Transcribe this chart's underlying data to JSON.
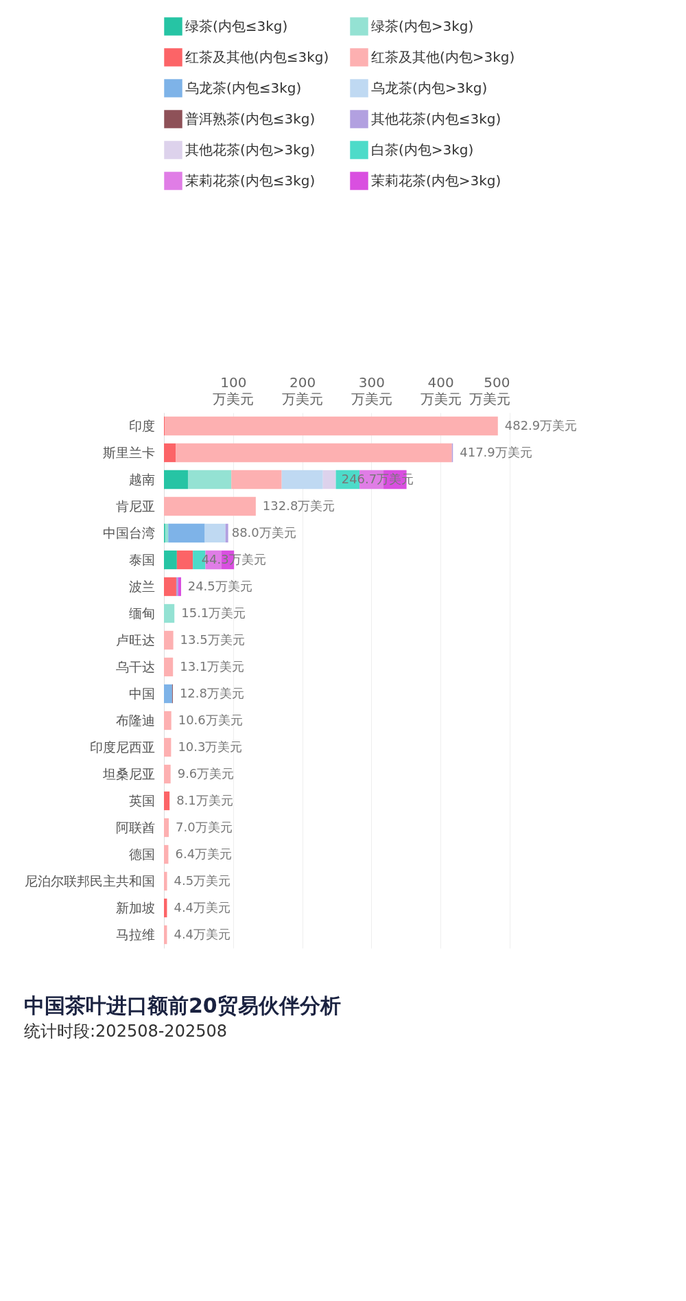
{
  "chart_data": {
    "type": "bar",
    "orientation": "horizontal",
    "stacked": true,
    "title": "中国茶叶进口额前20贸易伙伴分析",
    "subtitle": "统计时段:202508-202508",
    "categories": [
      "印度",
      "斯里兰卡",
      "越南",
      "肯尼亚",
      "中国台湾",
      "泰国",
      "波兰",
      "缅甸",
      "卢旺达",
      "乌干达",
      "中国",
      "布隆迪",
      "印度尼西亚",
      "坦桑尼亚",
      "英国",
      "阿联酋",
      "德国",
      "尼泊尔联邦民主共和国",
      "新加坡",
      "马拉维"
    ],
    "series": [
      {
        "name": "绿茶(内包≤3kg)",
        "color": "#26c4a4",
        "values": [
          null,
          null,
          34.7,
          null,
          1.8,
          18.7,
          null,
          null,
          null,
          null,
          null,
          null,
          null,
          null,
          null,
          null,
          null,
          null,
          null,
          null
        ]
      },
      {
        "name": "绿茶(内包>3kg)",
        "color": "#94e2d3",
        "values": [
          null,
          null,
          62.7,
          null,
          4.4,
          null,
          null,
          15.1,
          null,
          null,
          null,
          null,
          null,
          null,
          null,
          null,
          null,
          null,
          null,
          null
        ]
      },
      {
        "name": "红茶及其他(内包≤3kg)",
        "color": "#fc6467",
        "values": [
          1.0,
          17.3,
          null,
          null,
          null,
          23.1,
          17.8,
          null,
          null,
          null,
          null,
          null,
          null,
          null,
          8.1,
          null,
          null,
          null,
          4.4,
          null
        ]
      },
      {
        "name": "红茶及其他(内包>3kg)",
        "color": "#fdb0b1",
        "values": [
          481.9,
          399.1,
          72.9,
          132.8,
          null,
          null,
          null,
          null,
          13.5,
          13.1,
          null,
          10.6,
          10.3,
          9.6,
          null,
          7.0,
          6.4,
          4.5,
          null,
          4.4
        ]
      },
      {
        "name": "乌龙茶(内包≤3kg)",
        "color": "#7eb3e8",
        "values": [
          null,
          null,
          null,
          null,
          52.9,
          null,
          null,
          null,
          null,
          null,
          11.8,
          null,
          null,
          null,
          null,
          null,
          null,
          null,
          null,
          null
        ]
      },
      {
        "name": "乌龙茶(内包>3kg)",
        "color": "#bfd9f2",
        "values": [
          null,
          null,
          59.6,
          null,
          29.8,
          null,
          null,
          null,
          null,
          null,
          null,
          null,
          null,
          null,
          null,
          null,
          null,
          null,
          null,
          null
        ]
      },
      {
        "name": "普洱熟茶(内包≤3kg)",
        "color": "#8e5158",
        "values": [
          null,
          null,
          null,
          null,
          null,
          null,
          null,
          null,
          null,
          null,
          1.0,
          null,
          null,
          null,
          null,
          null,
          null,
          null,
          null,
          null
        ]
      },
      {
        "name": "其他花茶(内包≤3kg)",
        "color": "#b2a0e0",
        "values": [
          null,
          1.5,
          null,
          null,
          4.0,
          null,
          3.0,
          null,
          null,
          null,
          null,
          null,
          null,
          null,
          null,
          null,
          null,
          null,
          null,
          null
        ]
      },
      {
        "name": "其他花茶(内包>3kg)",
        "color": "#ddd2ec",
        "values": [
          null,
          null,
          18.7,
          null,
          null,
          null,
          null,
          null,
          null,
          null,
          null,
          null,
          null,
          null,
          null,
          null,
          null,
          null,
          null,
          null
        ]
      },
      {
        "name": "白茶(内包>3kg)",
        "color": "#4ddbc9",
        "values": [
          null,
          null,
          34.2,
          null,
          null,
          18.2,
          null,
          null,
          null,
          null,
          null,
          null,
          null,
          null,
          null,
          null,
          null,
          null,
          null,
          null
        ]
      },
      {
        "name": "茉莉花茶(内包≤3kg)",
        "color": "#e07de6",
        "values": [
          null,
          null,
          34.7,
          null,
          null,
          22.7,
          null,
          null,
          null,
          null,
          null,
          null,
          null,
          null,
          null,
          null,
          null,
          null,
          null,
          null
        ]
      },
      {
        "name": "茉莉花茶(内包>3kg)",
        "color": "#d94fe0",
        "values": [
          null,
          null,
          33.3,
          null,
          null,
          18.7,
          4.0,
          null,
          null,
          null,
          null,
          null,
          null,
          null,
          null,
          null,
          null,
          null,
          null,
          null
        ]
      }
    ],
    "annotations": [
      {
        "text": "482.9万美元",
        "x": 482.9,
        "y": "印度"
      },
      {
        "text": "417.9万美元",
        "x": 417.9,
        "y": "斯里兰卡"
      },
      {
        "text": "246.7万美元",
        "x": 246.7,
        "y": "越南"
      },
      {
        "text": "132.8万美元",
        "x": 132.8,
        "y": "肯尼亚"
      },
      {
        "text": "88.0万美元",
        "x": 88.0,
        "y": "中国台湾"
      },
      {
        "text": "44.3万美元",
        "x": 44.3,
        "y": "泰国"
      },
      {
        "text": "24.5万美元",
        "x": 24.5,
        "y": "波兰"
      },
      {
        "text": "15.1万美元",
        "x": 15.1,
        "y": "缅甸"
      },
      {
        "text": "13.5万美元",
        "x": 13.5,
        "y": "卢旺达"
      },
      {
        "text": "13.1万美元",
        "x": 13.1,
        "y": "乌干达"
      },
      {
        "text": "12.8万美元",
        "x": 12.8,
        "y": "中国"
      },
      {
        "text": "10.6万美元",
        "x": 10.6,
        "y": "布隆迪"
      },
      {
        "text": "10.3万美元",
        "x": 10.3,
        "y": "印度尼西亚"
      },
      {
        "text": "9.6万美元",
        "x": 9.6,
        "y": "坦桑尼亚"
      },
      {
        "text": "8.1万美元",
        "x": 8.1,
        "y": "英国"
      },
      {
        "text": "7.0万美元",
        "x": 7.0,
        "y": "阿联酋"
      },
      {
        "text": "6.4万美元",
        "x": 6.4,
        "y": "德国"
      },
      {
        "text": "4.5万美元",
        "x": 4.5,
        "y": "尼泊尔联邦民主共和国"
      },
      {
        "text": "4.4万美元",
        "x": 4.4,
        "y": "新加坡"
      },
      {
        "text": "4.4万美元",
        "x": 4.4,
        "y": "马拉维"
      }
    ],
    "xlim": [
      0,
      500
    ],
    "xticks": [
      {
        "value": 100,
        "label": "100\n万美元"
      },
      {
        "value": 200,
        "label": "200\n万美元"
      },
      {
        "value": 300,
        "label": "300\n万美元"
      },
      {
        "value": 400,
        "label": "400\n万美元"
      },
      {
        "value": 500,
        "label": "500\n万美元"
      }
    ],
    "grid": "x",
    "legend": "top"
  }
}
